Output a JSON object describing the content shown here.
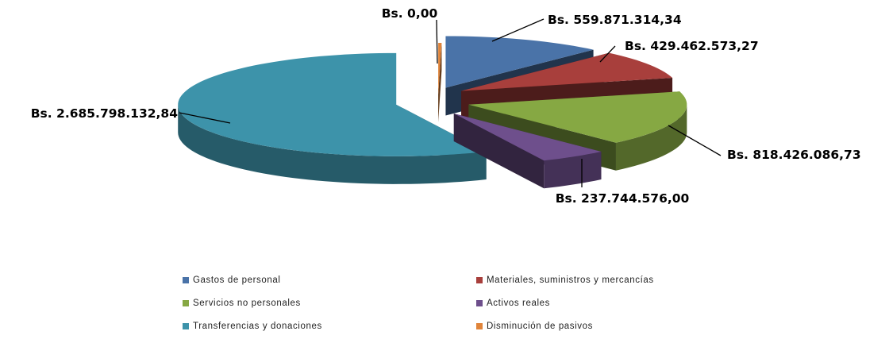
{
  "chart_data": {
    "type": "pie",
    "subtype": "exploded-3d",
    "categories": [
      "Gastos de personal",
      "Materiales, suministros y mercancías",
      "Servicios no personales",
      "Activos reales",
      "Transferencias y donaciones",
      "Disminución de pasivos"
    ],
    "values": [
      559871314.34,
      429462573.27,
      818426086.73,
      237744576.0,
      2685798132.84,
      0.0
    ],
    "value_labels": [
      "Bs. 559.871.314,34",
      "Bs. 429.462.573,27",
      "Bs. 818.426.086,73",
      "Bs. 237.744.576,00",
      "Bs. 2.685.798.132,84",
      "Bs. 0,00"
    ],
    "colors": [
      "#4a73a8",
      "#a83f3c",
      "#86a843",
      "#6e4f8c",
      "#3d93aa",
      "#e0843a"
    ],
    "legend_position": "bottom",
    "title": "",
    "xlabel": "",
    "ylabel": ""
  }
}
